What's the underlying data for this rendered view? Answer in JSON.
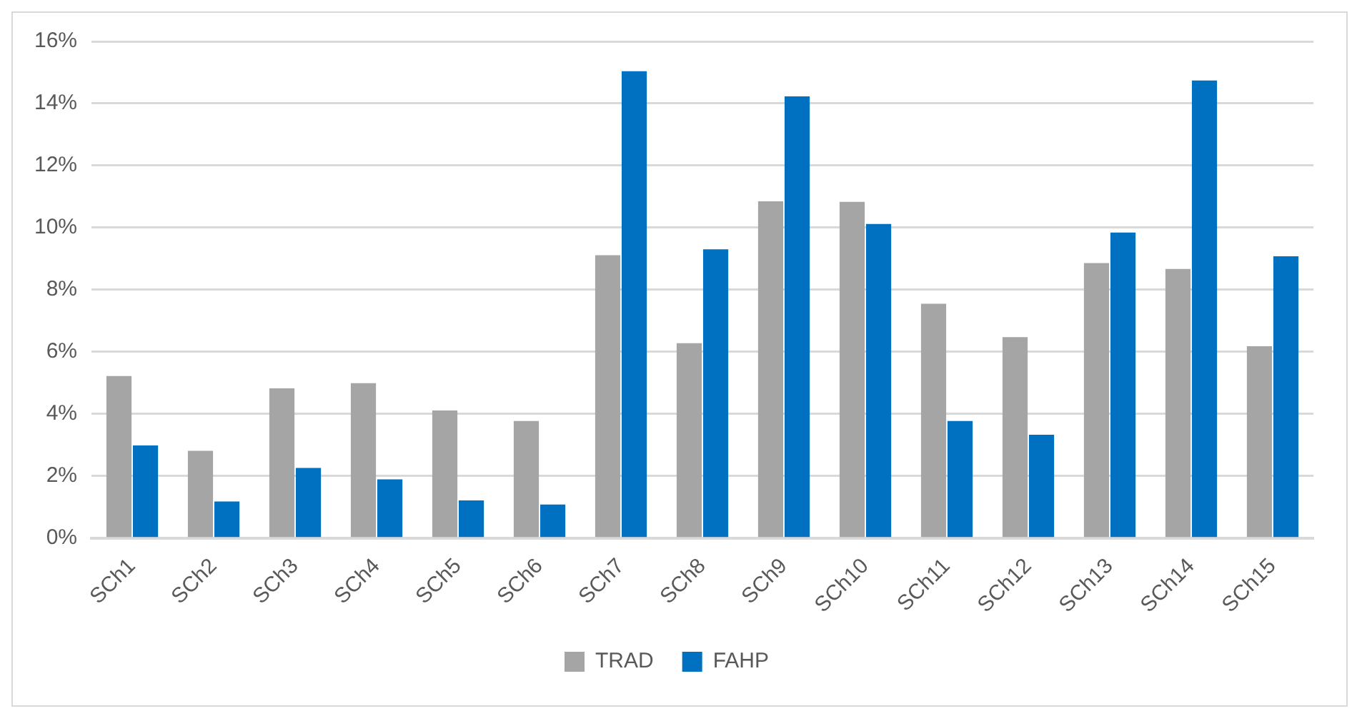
{
  "chart_data": {
    "type": "bar",
    "categories": [
      "SCh1",
      "SCh2",
      "SCh3",
      "SCh4",
      "SCh5",
      "SCh6",
      "SCh7",
      "SCh8",
      "SCh9",
      "SCh10",
      "SCh11",
      "SCh12",
      "SCh13",
      "SCh14",
      "SCh15"
    ],
    "series": [
      {
        "name": "TRAD",
        "color": "#a5a5a5",
        "values": [
          5.22,
          2.81,
          4.82,
          4.99,
          4.11,
          3.77,
          9.11,
          6.28,
          10.85,
          10.83,
          7.55,
          6.47,
          8.86,
          8.67,
          6.18
        ]
      },
      {
        "name": "FAHP",
        "color": "#0070c0",
        "values": [
          2.98,
          1.18,
          2.26,
          1.89,
          1.21,
          1.08,
          15.04,
          9.3,
          14.23,
          10.12,
          3.77,
          3.33,
          9.84,
          14.74,
          9.08
        ]
      }
    ],
    "ylim": [
      0,
      16
    ],
    "yticks": [
      {
        "value": 0,
        "label": "0%"
      },
      {
        "value": 2,
        "label": "2%"
      },
      {
        "value": 4,
        "label": "4%"
      },
      {
        "value": 6,
        "label": "6%"
      },
      {
        "value": 8,
        "label": "8%"
      },
      {
        "value": 10,
        "label": "10%"
      },
      {
        "value": 12,
        "label": "12%"
      },
      {
        "value": 14,
        "label": "14%"
      },
      {
        "value": 16,
        "label": "16%"
      }
    ],
    "grid": "y",
    "legend": "bottom"
  }
}
